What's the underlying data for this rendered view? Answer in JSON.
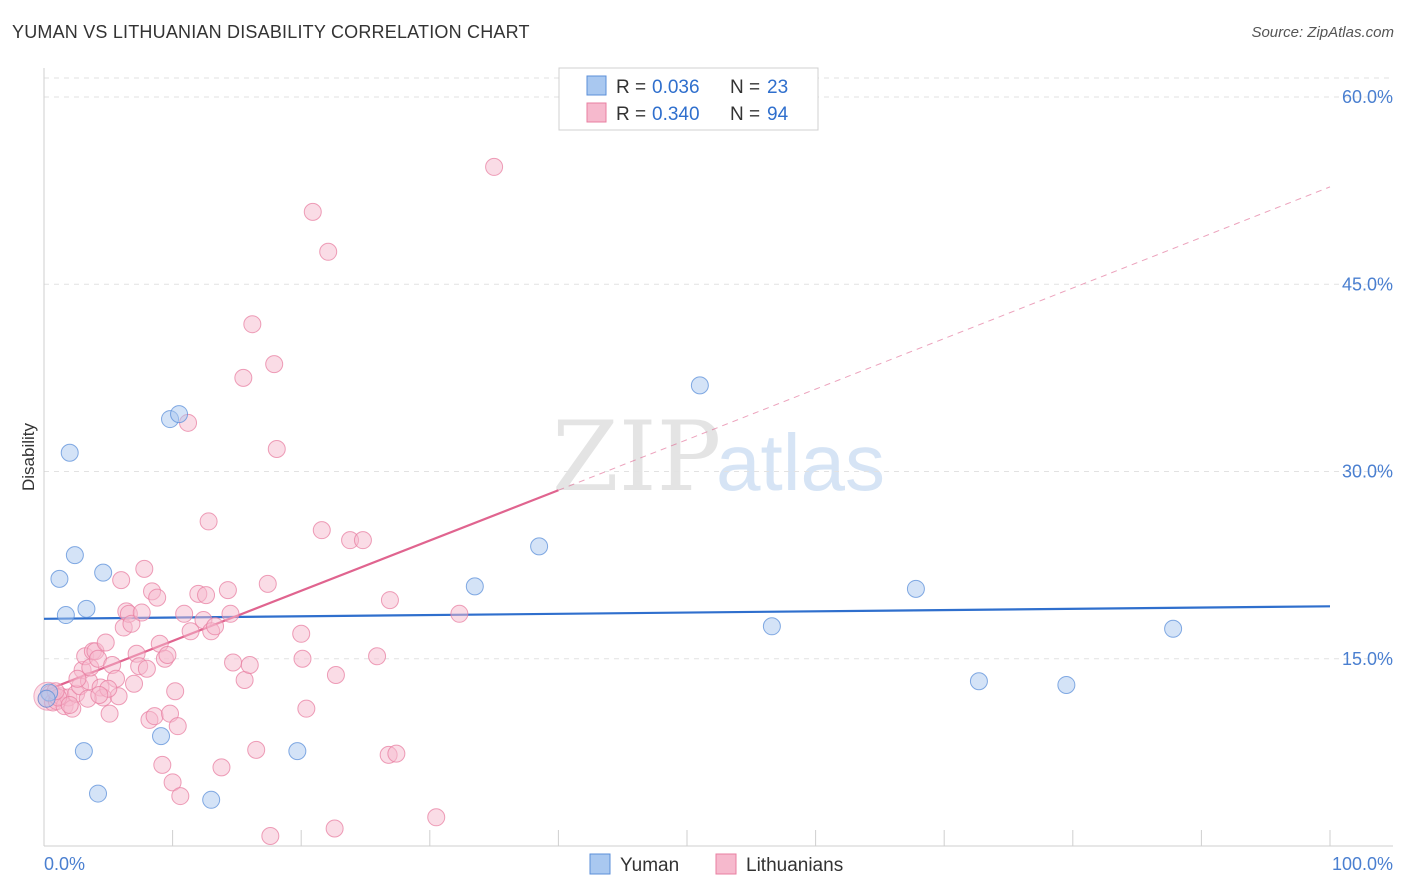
{
  "title": "YUMAN VS LITHUANIAN DISABILITY CORRELATION CHART",
  "source": "Source: ZipAtlas.com",
  "watermark": {
    "zip": "ZIP",
    "atlas": "atlas"
  },
  "colors": {
    "yuman": "#5b8fd9",
    "yuman_fill": "#a9c8f0",
    "yuman_line": "#2f6fcd",
    "lithuanian": "#e87fa1",
    "lithuanian_fill": "#f6b9cd",
    "lithuanian_line": "#e0648f",
    "tick_label": "#4a7fd0"
  },
  "legend": [
    {
      "r_label": "R =",
      "r_value": "0.036",
      "n_label": "N =",
      "n_value": "23"
    },
    {
      "r_label": "R =",
      "r_value": "0.340",
      "n_label": "N =",
      "n_value": "94"
    }
  ],
  "bottom_legend": [
    "Yuman",
    "Lithuanians"
  ],
  "chart_data": {
    "type": "scatter",
    "title": "YUMAN VS LITHUANIAN DISABILITY CORRELATION CHART",
    "xlabel": "",
    "ylabel": "Disability",
    "xlim": [
      0,
      100
    ],
    "ylim": [
      0,
      60
    ],
    "x_tick_labels": [
      "0.0%",
      "100.0%"
    ],
    "y_ticks": [
      15,
      30,
      45,
      60
    ],
    "y_tick_labels": [
      "15.0%",
      "30.0%",
      "45.0%",
      "60.0%"
    ],
    "grid": "horizontal dashed",
    "legend_position": "top-center",
    "series": [
      {
        "name": "Yuman",
        "r": 0.036,
        "n": 23,
        "trend": {
          "x": [
            0,
            100
          ],
          "y": [
            18.2,
            19.2
          ]
        },
        "points": [
          [
            0.4,
            12.3
          ],
          [
            1.2,
            21.4
          ],
          [
            1.7,
            18.5
          ],
          [
            2.0,
            31.5
          ],
          [
            2.4,
            23.3
          ],
          [
            3.1,
            7.6
          ],
          [
            3.3,
            19.0
          ],
          [
            4.2,
            4.2
          ],
          [
            4.6,
            21.9
          ],
          [
            9.1,
            8.8
          ],
          [
            9.8,
            34.2
          ],
          [
            10.5,
            34.6
          ],
          [
            13.0,
            3.7
          ],
          [
            19.7,
            7.6
          ],
          [
            33.5,
            20.8
          ],
          [
            38.5,
            24.0
          ],
          [
            51.0,
            36.9
          ],
          [
            56.6,
            17.6
          ],
          [
            67.8,
            20.6
          ],
          [
            72.7,
            13.2
          ],
          [
            79.5,
            12.9
          ],
          [
            87.8,
            17.4
          ],
          [
            0.2,
            11.8
          ]
        ]
      },
      {
        "name": "Lithuanians",
        "r": 0.34,
        "n": 94,
        "trend": {
          "x": [
            0,
            40
          ],
          "y": [
            12.4,
            28.5
          ]
        },
        "trend_extension": {
          "x": [
            40,
            100
          ],
          "y": [
            28.5,
            52.8
          ]
        },
        "points": [
          [
            0.2,
            11.8
          ],
          [
            0.5,
            12.2
          ],
          [
            0.7,
            11.5
          ],
          [
            1.0,
            11.6
          ],
          [
            1.3,
            12.0
          ],
          [
            1.6,
            11.2
          ],
          [
            1.9,
            11.9
          ],
          [
            2.2,
            11.0
          ],
          [
            2.5,
            12.2
          ],
          [
            2.8,
            12.8
          ],
          [
            3.0,
            14.1
          ],
          [
            3.2,
            15.2
          ],
          [
            3.5,
            13.2
          ],
          [
            3.6,
            14.3
          ],
          [
            3.8,
            15.6
          ],
          [
            4.0,
            15.6
          ],
          [
            4.2,
            15.0
          ],
          [
            4.4,
            12.7
          ],
          [
            4.6,
            11.9
          ],
          [
            4.8,
            16.3
          ],
          [
            5.1,
            10.6
          ],
          [
            5.3,
            14.5
          ],
          [
            5.6,
            13.4
          ],
          [
            5.8,
            12.0
          ],
          [
            6.0,
            21.3
          ],
          [
            6.2,
            17.5
          ],
          [
            6.4,
            18.8
          ],
          [
            6.6,
            18.6
          ],
          [
            6.8,
            17.8
          ],
          [
            7.0,
            13.0
          ],
          [
            7.2,
            15.4
          ],
          [
            7.4,
            14.4
          ],
          [
            7.6,
            18.7
          ],
          [
            7.8,
            22.2
          ],
          [
            8.0,
            14.2
          ],
          [
            8.2,
            10.1
          ],
          [
            8.4,
            20.4
          ],
          [
            8.6,
            10.4
          ],
          [
            8.8,
            19.9
          ],
          [
            9.0,
            16.2
          ],
          [
            9.2,
            6.5
          ],
          [
            9.4,
            15.0
          ],
          [
            9.6,
            15.3
          ],
          [
            9.8,
            10.6
          ],
          [
            10.0,
            5.1
          ],
          [
            10.2,
            12.4
          ],
          [
            10.4,
            9.6
          ],
          [
            10.6,
            4.0
          ],
          [
            10.9,
            18.6
          ],
          [
            11.2,
            33.9
          ],
          [
            11.4,
            17.2
          ],
          [
            12.0,
            20.2
          ],
          [
            12.4,
            18.1
          ],
          [
            12.6,
            20.1
          ],
          [
            12.8,
            26.0
          ],
          [
            13.0,
            17.2
          ],
          [
            13.3,
            17.6
          ],
          [
            13.8,
            6.3
          ],
          [
            14.3,
            20.5
          ],
          [
            14.5,
            18.6
          ],
          [
            14.7,
            14.7
          ],
          [
            15.5,
            37.5
          ],
          [
            15.6,
            13.3
          ],
          [
            16.0,
            14.5
          ],
          [
            16.2,
            41.8
          ],
          [
            16.5,
            7.7
          ],
          [
            17.4,
            21.0
          ],
          [
            17.6,
            0.8
          ],
          [
            17.9,
            38.6
          ],
          [
            18.1,
            31.8
          ],
          [
            20.0,
            17.0
          ],
          [
            20.1,
            15.0
          ],
          [
            20.4,
            11.0
          ],
          [
            20.9,
            50.8
          ],
          [
            21.6,
            25.3
          ],
          [
            22.1,
            47.6
          ],
          [
            22.6,
            1.4
          ],
          [
            22.7,
            13.7
          ],
          [
            23.8,
            24.5
          ],
          [
            24.8,
            24.5
          ],
          [
            25.9,
            15.2
          ],
          [
            26.9,
            19.7
          ],
          [
            26.8,
            7.3
          ],
          [
            27.4,
            7.4
          ],
          [
            30.5,
            2.3
          ],
          [
            32.3,
            18.6
          ],
          [
            35.0,
            54.4
          ],
          [
            1.1,
            11.9
          ],
          [
            2.0,
            11.3
          ],
          [
            3.4,
            11.8
          ],
          [
            5.0,
            12.6
          ],
          [
            0.9,
            12.4
          ],
          [
            2.6,
            13.4
          ],
          [
            4.3,
            12.1
          ]
        ]
      }
    ]
  }
}
